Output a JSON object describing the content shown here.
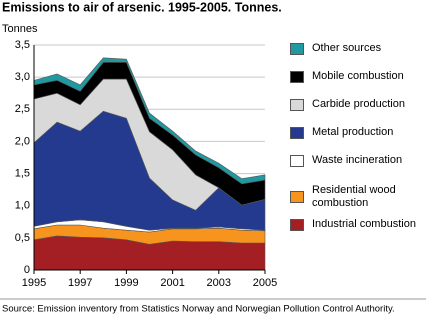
{
  "chart_data": {
    "type": "stacked_area",
    "title": "Emissions to air of arsenic. 1995-2005. Tonnes.",
    "y_label": "Tonnes",
    "source": "Source: Emission inventory from Statistics Norway and Norwegian Pollution Control Authority.",
    "x": [
      1995,
      1996,
      1997,
      1998,
      1999,
      2000,
      2001,
      2002,
      2003,
      2004,
      2005
    ],
    "series": [
      {
        "name": "Industrial combustion",
        "color": "#a31f23",
        "values": [
          0.47,
          0.53,
          0.51,
          0.5,
          0.47,
          0.4,
          0.45,
          0.44,
          0.44,
          0.42,
          0.42
        ]
      },
      {
        "name": "Residential wood combustion",
        "color": "#f7941d",
        "values": [
          0.17,
          0.17,
          0.19,
          0.15,
          0.15,
          0.19,
          0.19,
          0.2,
          0.21,
          0.2,
          0.19
        ]
      },
      {
        "name": "Waste incineration",
        "color": "#ffffff",
        "values": [
          0.04,
          0.05,
          0.08,
          0.1,
          0.06,
          0.03,
          0.01,
          0.01,
          0.02,
          0.02,
          0.01
        ]
      },
      {
        "name": "Metal production",
        "color": "#233a8f",
        "values": [
          1.3,
          1.55,
          1.38,
          1.72,
          1.68,
          0.81,
          0.44,
          0.28,
          0.61,
          0.37,
          0.48
        ]
      },
      {
        "name": "Carbide production",
        "color": "#d9d9d9",
        "values": [
          0.68,
          0.45,
          0.41,
          0.5,
          0.61,
          0.72,
          0.78,
          0.55,
          0,
          0,
          0
        ]
      },
      {
        "name": "Mobile combustion",
        "color": "#000000",
        "values": [
          0.22,
          0.2,
          0.21,
          0.26,
          0.26,
          0.21,
          0.23,
          0.31,
          0.31,
          0.33,
          0.3
        ]
      },
      {
        "name": "Other sources",
        "color": "#1e9aa0",
        "values": [
          0.07,
          0.1,
          0.1,
          0.07,
          0.05,
          0.08,
          0.06,
          0.06,
          0.07,
          0.08,
          0.08
        ]
      }
    ],
    "xlim": [
      1995,
      2005
    ],
    "xticks": [
      1995,
      1997,
      1999,
      2001,
      2003,
      2005
    ],
    "ylim": [
      0,
      3.5
    ],
    "yticks": [
      0,
      {
        "value": 0.5,
        "label": "0,5"
      },
      {
        "value": 1,
        "label": "1,0"
      },
      {
        "value": 1.5,
        "label": "1,5"
      },
      {
        "value": 2,
        "label": "2,0"
      },
      {
        "value": 2.5,
        "label": "2,5"
      },
      {
        "value": 3,
        "label": "3,0"
      },
      {
        "value": 3.5,
        "label": "3,5"
      }
    ],
    "grid": true,
    "legend": "right"
  }
}
